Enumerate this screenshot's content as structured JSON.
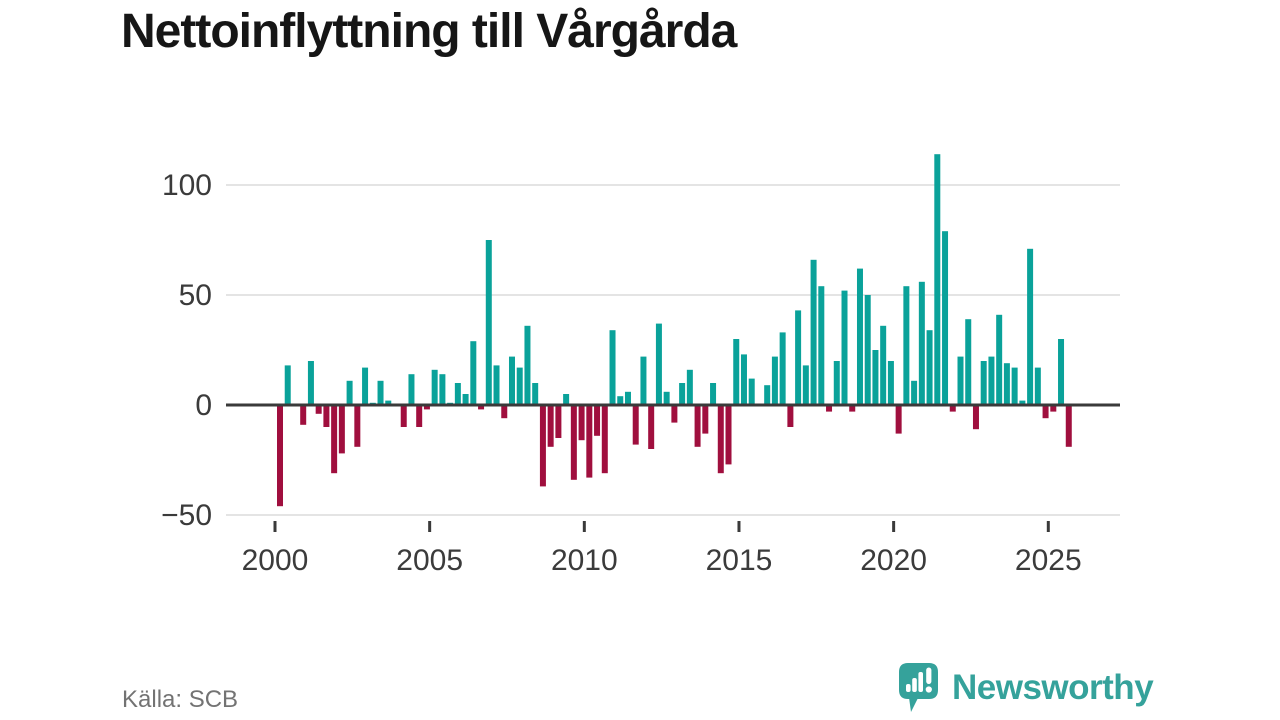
{
  "title": "Nettoinflyttning till Vårgårda",
  "source": "Källa: SCB",
  "brand": {
    "name": "Newsworthy"
  },
  "colors": {
    "positive": "#0aa29a",
    "negative": "#a00f3e",
    "axis": "#3a3a3a",
    "grid": "#e4e4e4",
    "label": "#3b3b3b",
    "title": "#161616",
    "source_text": "#737373",
    "brand_teal": "#35a29b",
    "background": "#ffffff"
  },
  "chart_data": {
    "type": "bar",
    "title": "Nettoinflyttning till Vårgårda",
    "frequency": "quarterly",
    "start": {
      "year": 2000,
      "quarter": 1
    },
    "end": {
      "year": 2025,
      "quarter": 3
    },
    "values": [
      -46,
      18,
      0,
      -9,
      20,
      -4,
      -10,
      -31,
      -22,
      11,
      -19,
      17,
      1,
      11,
      2,
      0,
      -10,
      14,
      -10,
      -2,
      16,
      14,
      1,
      10,
      5,
      29,
      -2,
      75,
      18,
      -6,
      22,
      17,
      36,
      10,
      -37,
      -19,
      -15,
      5,
      -34,
      -16,
      -33,
      -14,
      -31,
      34,
      4,
      6,
      -18,
      22,
      -20,
      37,
      6,
      -8,
      10,
      16,
      -19,
      -13,
      10,
      -31,
      -27,
      30,
      23,
      12,
      0,
      9,
      22,
      33,
      -10,
      43,
      18,
      66,
      54,
      -3,
      20,
      52,
      -3,
      62,
      50,
      25,
      36,
      20,
      -13,
      54,
      11,
      56,
      34,
      114,
      79,
      -3,
      22,
      39,
      -11,
      20,
      22,
      41,
      19,
      17,
      2,
      71,
      17,
      -6,
      -3,
      30,
      -19
    ],
    "x_tick_years": [
      2000,
      2005,
      2010,
      2015,
      2020,
      2025
    ],
    "x_tick_labels": [
      "2000",
      "2005",
      "2010",
      "2015",
      "2020",
      "2025"
    ],
    "y_ticks": [
      100,
      50,
      0,
      -50
    ],
    "y_tick_labels": [
      "100",
      "50",
      "0",
      "−50"
    ],
    "ylim": [
      -50,
      115
    ],
    "grid": "horizontal",
    "legend": "none"
  }
}
